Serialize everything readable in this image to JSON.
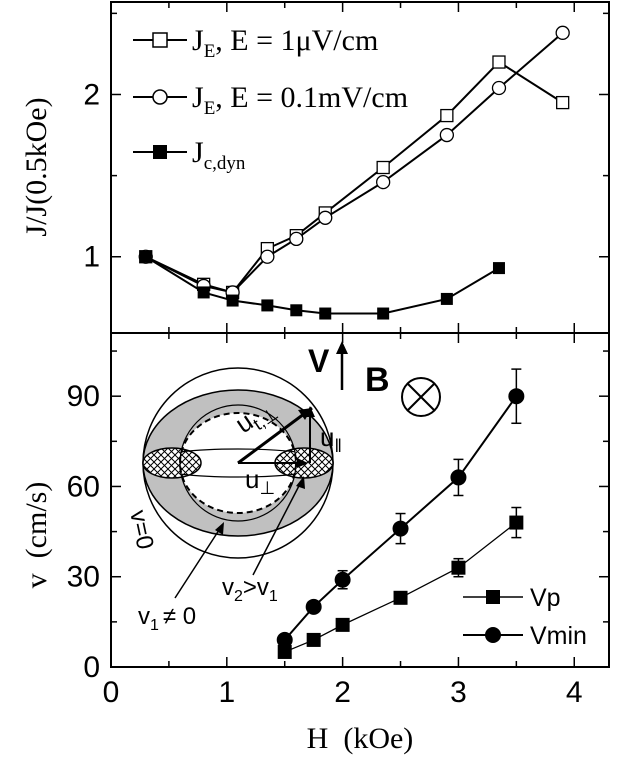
{
  "chart_data": [
    {
      "type": "line",
      "panel": "top",
      "ylabel": "J/J(0.5kOe)",
      "xlim": [
        0,
        4.3
      ],
      "ylim": [
        0.53,
        2.57
      ],
      "yticks": [
        1,
        2
      ],
      "grid": false,
      "legend_position": "top-left",
      "series": [
        {
          "name_parts": [
            "J",
            "E",
            ", E = 1μV/cm"
          ],
          "marker": "open-square",
          "x": [
            0.3,
            0.8,
            1.05,
            1.35,
            1.6,
            1.85,
            2.35,
            2.9,
            3.35,
            3.9
          ],
          "y": [
            1.0,
            0.83,
            0.78,
            1.05,
            1.13,
            1.27,
            1.55,
            1.87,
            2.2,
            1.95
          ]
        },
        {
          "name_parts": [
            "J",
            "E",
            ", E = 0.1mV/cm"
          ],
          "marker": "open-circle",
          "x": [
            0.3,
            0.8,
            1.05,
            1.35,
            1.6,
            1.85,
            2.35,
            2.9,
            3.35,
            3.9
          ],
          "y": [
            1.0,
            0.82,
            0.78,
            1.0,
            1.11,
            1.24,
            1.46,
            1.75,
            2.04,
            2.38
          ]
        },
        {
          "name_parts": [
            "J",
            "c,dyn",
            ""
          ],
          "marker": "filled-square",
          "x": [
            0.3,
            0.8,
            1.05,
            1.35,
            1.6,
            1.85,
            2.35,
            2.9,
            3.35
          ],
          "y": [
            1.0,
            0.78,
            0.73,
            0.7,
            0.67,
            0.65,
            0.65,
            0.74,
            0.93
          ]
        }
      ]
    },
    {
      "type": "line",
      "panel": "bottom",
      "xlabel": "H  (kOe)",
      "ylabel": "v  (cm/s)",
      "xlim": [
        0,
        4.3
      ],
      "ylim": [
        0,
        111
      ],
      "xticks": [
        0,
        1,
        2,
        3,
        4
      ],
      "yticks": [
        0,
        30,
        60,
        90
      ],
      "grid": false,
      "legend_position": "bottom-right",
      "series": [
        {
          "name": "Vp",
          "marker": "filled-square",
          "x": [
            1.5,
            1.75,
            2.0,
            2.5,
            3.0,
            3.5
          ],
          "y": [
            5,
            9,
            14,
            23,
            33,
            48
          ],
          "err": [
            0,
            0,
            0,
            2,
            3,
            5
          ]
        },
        {
          "name": "Vmin",
          "marker": "filled-circle",
          "x": [
            1.5,
            1.75,
            2.0,
            2.5,
            3.0,
            3.5
          ],
          "y": [
            9,
            20,
            29,
            46,
            63,
            90
          ],
          "err": [
            0,
            0,
            3,
            5,
            6,
            9
          ]
        }
      ]
    }
  ],
  "inset": {
    "v_label": "V",
    "b_label": "B",
    "u_t_main": "u",
    "u_t_sub": "t,⊥",
    "u_par_main": "u",
    "u_par_sub": "‖",
    "u_perp_main": "u",
    "u_perp_sub": "⊥",
    "v0_label": "v=0",
    "v2_main": "v",
    "v2_sub": "2",
    "v2_gt": ">v",
    "v2_sub2": "1",
    "v1_main": "v",
    "v1_sub": "1",
    "v1_ne": "≠ 0"
  }
}
